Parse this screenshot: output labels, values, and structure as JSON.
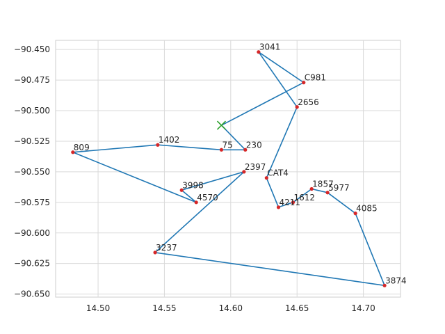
{
  "chart_data": {
    "type": "line",
    "title": "",
    "xlabel": "",
    "ylabel": "",
    "xlim": [
      14.468,
      14.728
    ],
    "ylim": [
      -90.6525,
      -90.4425
    ],
    "grid": true,
    "xticks": [
      14.5,
      14.55,
      14.6,
      14.65,
      14.7
    ],
    "xtick_labels": [
      "14.50",
      "14.55",
      "14.60",
      "14.65",
      "14.70"
    ],
    "yticks": [
      -90.45,
      -90.475,
      -90.5,
      -90.525,
      -90.55,
      -90.575,
      -90.6,
      -90.625,
      -90.65
    ],
    "ytick_labels": [
      "−90.450",
      "−90.475",
      "−90.500",
      "−90.525",
      "−90.550",
      "−90.575",
      "−90.600",
      "−90.625",
      "−90.650"
    ],
    "route": {
      "line_color": "#1f77b4",
      "point_color": "#d62728",
      "points": [
        {
          "label": "230",
          "x": 14.611,
          "y": -90.532
        },
        {
          "label": "75",
          "x": 14.593,
          "y": -90.532
        },
        {
          "label": "1402",
          "x": 14.545,
          "y": -90.528
        },
        {
          "label": "809",
          "x": 14.481,
          "y": -90.534
        },
        {
          "label": "4570",
          "x": 14.574,
          "y": -90.575
        },
        {
          "label": "3998",
          "x": 14.563,
          "y": -90.565
        },
        {
          "label": "2397",
          "x": 14.61,
          "y": -90.55
        },
        {
          "label": "3237",
          "x": 14.543,
          "y": -90.616
        },
        {
          "label": "3874",
          "x": 14.716,
          "y": -90.643
        },
        {
          "label": "4085",
          "x": 14.694,
          "y": -90.584
        },
        {
          "label": "5977",
          "x": 14.673,
          "y": -90.567
        },
        {
          "label": "1857",
          "x": 14.661,
          "y": -90.564
        },
        {
          "label": "1612",
          "x": 14.647,
          "y": -90.575
        },
        {
          "label": "4211",
          "x": 14.636,
          "y": -90.579
        },
        {
          "label": "CAT4",
          "x": 14.627,
          "y": -90.555
        },
        {
          "label": "2656",
          "x": 14.65,
          "y": -90.497
        },
        {
          "label": "3041",
          "x": 14.621,
          "y": -90.452
        },
        {
          "label": "C981",
          "x": 14.655,
          "y": -90.477
        }
      ]
    },
    "start_marker": {
      "x": 14.593,
      "y": -90.512,
      "color": "#2ca02c",
      "symbol": "x"
    }
  }
}
